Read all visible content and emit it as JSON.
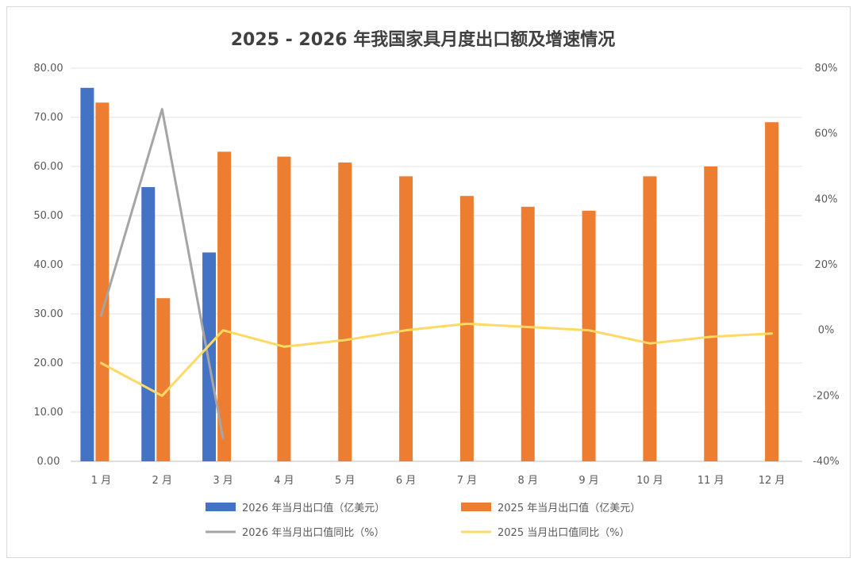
{
  "chart_data": {
    "type": "bar",
    "title": "2025 - 2026 年我国家具月度出口额及增速情况",
    "categories": [
      "1 月",
      "2 月",
      "3 月",
      "4 月",
      "5 月",
      "6 月",
      "7 月",
      "8 月",
      "9 月",
      "10 月",
      "11 月",
      "12 月"
    ],
    "y_left": {
      "ticks": [
        "0.00",
        "10.00",
        "20.00",
        "30.00",
        "40.00",
        "50.00",
        "60.00",
        "70.00",
        "80.00"
      ],
      "ylim": [
        0,
        80
      ]
    },
    "y_right": {
      "ticks": [
        "-40%",
        "-20%",
        "0%",
        "20%",
        "40%",
        "60%",
        "80%"
      ],
      "ylim": [
        -40,
        80
      ]
    },
    "grid": true,
    "legend_position": "bottom",
    "series": [
      {
        "name": "2026 年当月出口值（亿美元）",
        "type": "bar",
        "axis": "left",
        "color": "#4472c4",
        "values": [
          76.0,
          55.8,
          42.5,
          null,
          null,
          null,
          null,
          null,
          null,
          null,
          null,
          null
        ]
      },
      {
        "name": "2025 年当月出口值（亿美元）",
        "type": "bar",
        "axis": "left",
        "color": "#ed7d31",
        "values": [
          73.0,
          33.2,
          63.0,
          62.0,
          60.8,
          58.0,
          54.0,
          51.8,
          51.0,
          58.0,
          60.0,
          69.0
        ]
      },
      {
        "name": "2026 年当月出口值同比（%）",
        "type": "line",
        "axis": "right",
        "color": "#a5a5a5",
        "values": [
          4.5,
          67.5,
          -33.0,
          null,
          null,
          null,
          null,
          null,
          null,
          null,
          null,
          null
        ]
      },
      {
        "name": "2025 当月出口值同比（%）",
        "type": "line",
        "axis": "right",
        "color": "#ffd966",
        "values": [
          -10.0,
          -20.0,
          0.0,
          -5.0,
          -3.0,
          0.0,
          2.0,
          1.0,
          0.0,
          -4.0,
          -2.0,
          -1.0
        ]
      }
    ]
  }
}
